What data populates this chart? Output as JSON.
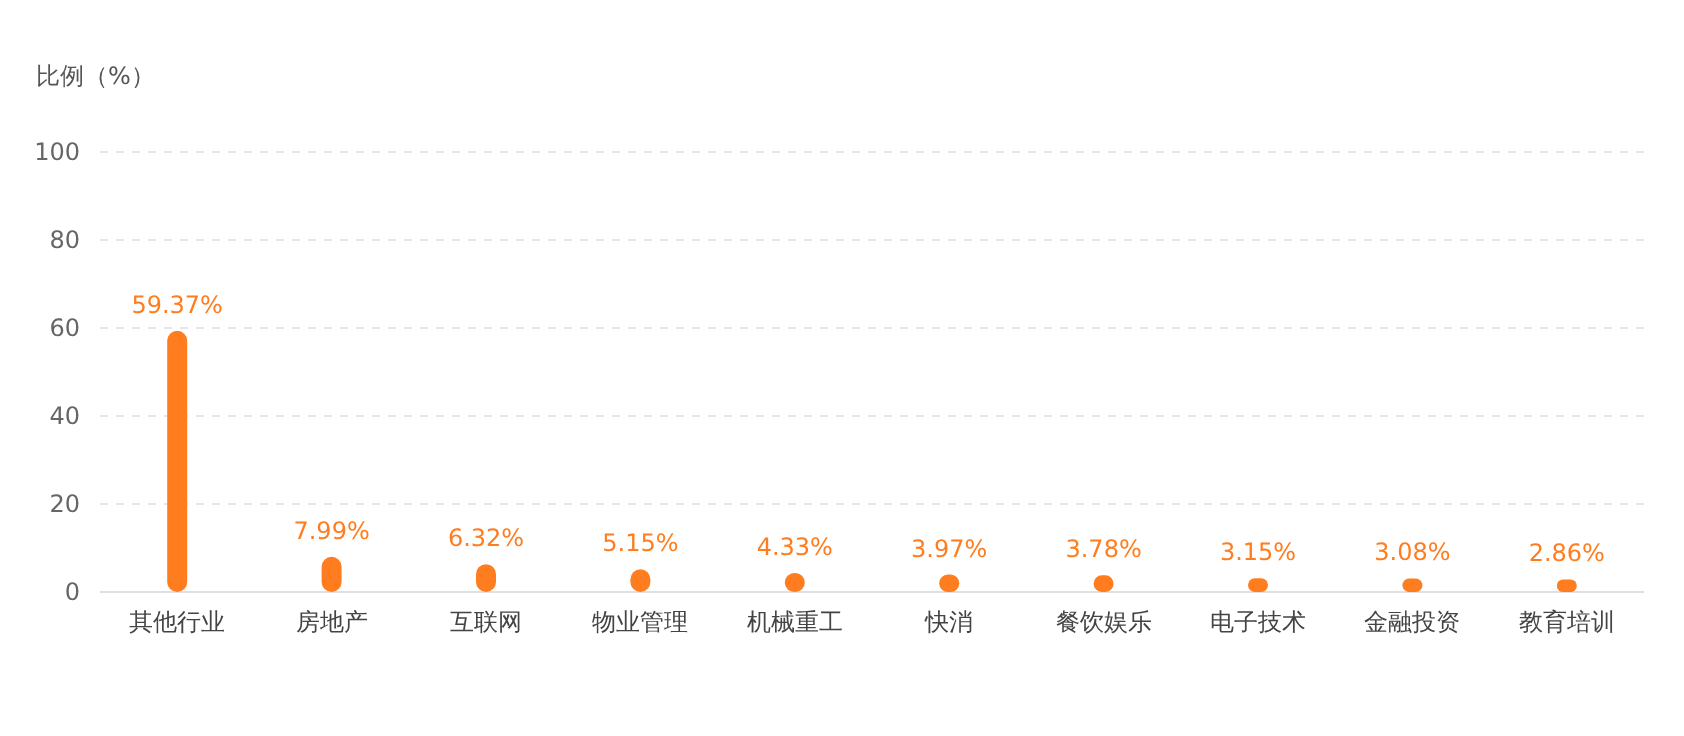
{
  "chart_data": {
    "type": "bar",
    "ylabel": "比例（%）",
    "categories": [
      "其他行业",
      "房地产",
      "互联网",
      "物业管理",
      "机械重工",
      "快消",
      "餐饮娱乐",
      "电子技术",
      "金融投资",
      "教育培训"
    ],
    "values": [
      59.37,
      7.99,
      6.32,
      5.15,
      4.33,
      3.97,
      3.78,
      3.15,
      3.08,
      2.86
    ],
    "value_labels": [
      "59.37%",
      "7.99%",
      "6.32%",
      "5.15%",
      "4.33%",
      "3.97%",
      "3.78%",
      "3.15%",
      "3.08%",
      "2.86%"
    ],
    "color": "#ff7d1f",
    "ylim": [
      0,
      100
    ],
    "yticks": [
      0,
      20,
      40,
      60,
      80,
      100
    ],
    "grid": "y"
  }
}
